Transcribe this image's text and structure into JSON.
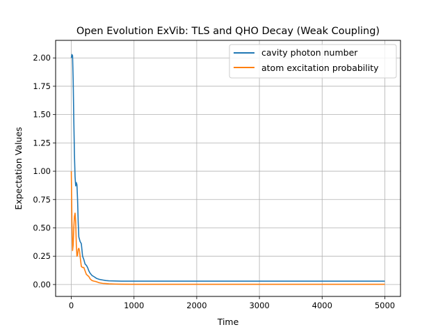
{
  "chart_data": {
    "type": "line",
    "title": "Open Evolution ExVib: TLS and QHO Decay (Weak Coupling)",
    "xlabel": "Time",
    "ylabel": "Expectation Values",
    "xlim": [
      -250,
      5250
    ],
    "ylim": [
      -0.105,
      2.155
    ],
    "xticks": [
      0,
      1000,
      2000,
      3000,
      4000,
      5000
    ],
    "xtick_labels": [
      "0",
      "1000",
      "2000",
      "3000",
      "4000",
      "5000"
    ],
    "yticks": [
      0.0,
      0.25,
      0.5,
      0.75,
      1.0,
      1.25,
      1.5,
      1.75,
      2.0
    ],
    "ytick_labels": [
      "0.00",
      "0.25",
      "0.50",
      "0.75",
      "1.00",
      "1.25",
      "1.50",
      "1.75",
      "2.00"
    ],
    "grid": true,
    "legend_position": "top-right",
    "series": [
      {
        "name": "cavity photon number",
        "color": "#1f77b4",
        "x": [
          0,
          10,
          20,
          30,
          40,
          50,
          60,
          70,
          80,
          90,
          100,
          110,
          120,
          130,
          140,
          160,
          180,
          200,
          220,
          240,
          260,
          280,
          300,
          330,
          360,
          400,
          450,
          500,
          550,
          600,
          700,
          800,
          1000,
          1500,
          2000,
          3000,
          4000,
          5000
        ],
        "y": [
          2.0,
          2.03,
          2.02,
          1.8,
          1.45,
          1.15,
          0.95,
          0.87,
          0.9,
          0.88,
          0.75,
          0.55,
          0.42,
          0.4,
          0.38,
          0.36,
          0.25,
          0.22,
          0.18,
          0.17,
          0.15,
          0.12,
          0.1,
          0.08,
          0.07,
          0.055,
          0.045,
          0.04,
          0.035,
          0.033,
          0.031,
          0.03,
          0.03,
          0.03,
          0.03,
          0.03,
          0.03,
          0.03
        ]
      },
      {
        "name": "atom excitation probability",
        "color": "#ff7f0e",
        "x": [
          0,
          10,
          20,
          30,
          40,
          50,
          60,
          70,
          80,
          90,
          100,
          110,
          120,
          130,
          140,
          160,
          180,
          200,
          220,
          240,
          260,
          280,
          300,
          330,
          360,
          400,
          450,
          500,
          550,
          600,
          700,
          800,
          1000,
          1500,
          2000,
          3000,
          4000,
          5000
        ],
        "y": [
          1.0,
          0.55,
          0.3,
          0.35,
          0.5,
          0.6,
          0.63,
          0.55,
          0.35,
          0.25,
          0.26,
          0.31,
          0.32,
          0.3,
          0.25,
          0.16,
          0.15,
          0.15,
          0.12,
          0.09,
          0.08,
          0.07,
          0.05,
          0.035,
          0.03,
          0.025,
          0.015,
          0.01,
          0.008,
          0.006,
          0.004,
          0.003,
          0.002,
          0.002,
          0.002,
          0.002,
          0.002,
          0.002
        ]
      }
    ]
  }
}
